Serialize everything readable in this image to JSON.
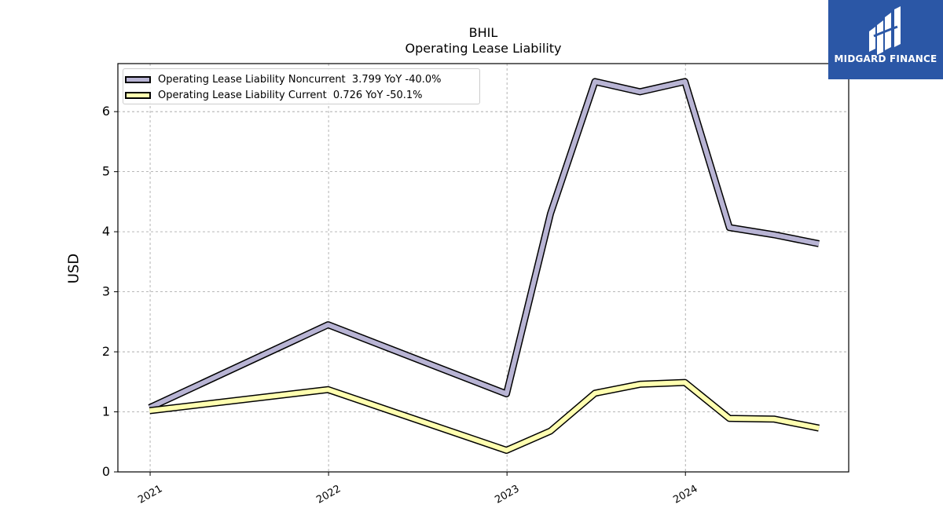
{
  "title": "BHIL",
  "subtitle": "Operating Lease Liability",
  "logo": {
    "text": "MIDGARD FINANCE",
    "icon": "midgard-logo-icon"
  },
  "colors": {
    "noncurrent": "#b8b4d4",
    "current": "#ffffb0",
    "grid": "#a0a0a0",
    "logo_bg": "#2b57a6"
  },
  "legend": [
    {
      "label": "Operating Lease Liability Noncurrent  3.799 YoY -40.0%"
    },
    {
      "label": "Operating Lease Liability Current  0.726 YoY -50.1%"
    }
  ],
  "chart_data": {
    "type": "line",
    "title": "BHIL",
    "subtitle": "Operating Lease Liability",
    "xlabel": "",
    "ylabel": "USD",
    "ylim": [
      0,
      6.8
    ],
    "yticks": [
      0,
      1,
      2,
      3,
      4,
      5,
      6
    ],
    "xticks": [
      "2021",
      "2022",
      "2023",
      "2024"
    ],
    "x": [
      "2020-12-31",
      "2021-12-31",
      "2022-12-31",
      "2023-03-31",
      "2023-06-30",
      "2023-09-30",
      "2023-12-31",
      "2024-03-31",
      "2024-06-30",
      "2024-09-30"
    ],
    "series": [
      {
        "name": "Operating Lease Liability Noncurrent",
        "values": [
          1.07,
          2.45,
          1.3,
          4.3,
          6.5,
          6.33,
          6.5,
          4.07,
          3.95,
          3.8
        ]
      },
      {
        "name": "Operating Lease Liability Current",
        "values": [
          1.02,
          1.37,
          0.36,
          0.68,
          1.31,
          1.46,
          1.49,
          0.89,
          0.88,
          0.73
        ]
      }
    ],
    "grid": true,
    "legend_position": "top-left"
  }
}
